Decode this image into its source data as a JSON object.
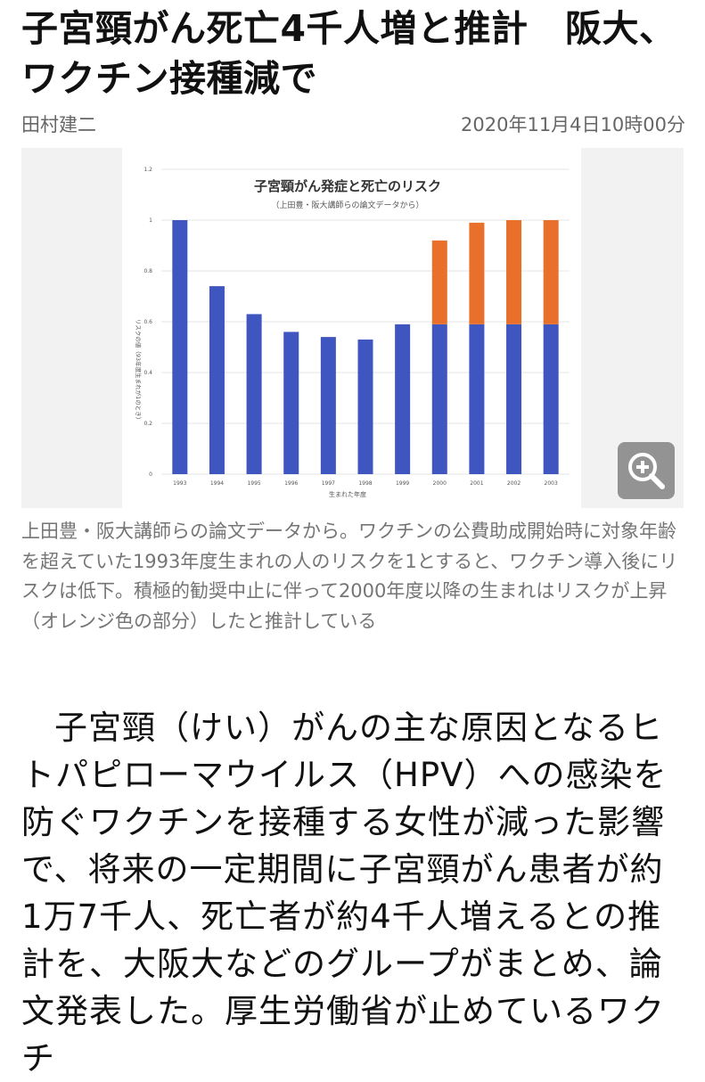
{
  "article": {
    "title": "子宮頸がん死亡4千人増と推計　阪大、ワクチン接種減で",
    "author": "田村建二",
    "date": "2020年11月4日10時00分",
    "caption": "上田豊・阪大講師らの論文データから。ワクチンの公費助成開始時に対象年齢を超えていた1993年度生まれの人のリスクを1とすると、ワクチン導入後にリスクは低下。積極的勧奨中止に伴って2000年度以降の生まれはリスクが上昇（オレンジ色の部分）したと推計している",
    "body": "子宮頸（けい）がんの主な原因となるヒトパピローマウイルス（HPV）への感染を防ぐワクチンを接種する女性が減った影響で、将来の一定期間に子宮頸がん患者が約1万7千人、死亡者が約4千人増えるとの推計を、大阪大などのグループがまとめ、論文発表した。厚生労働省が止めているワクチ"
  },
  "icons": {
    "zoom": "zoom-in-icon"
  },
  "chart_data": {
    "type": "bar",
    "stacked": true,
    "title": "子宮頸がん発症と死亡のリスク",
    "subtitle": "（上田豊・阪大講師らの論文データから）",
    "xlabel": "生まれた年度",
    "ylabel": "リスクの値（93年度生まれが1のとき）",
    "ylim": [
      0,
      1.2
    ],
    "yticks": [
      "0",
      "0.2",
      "0.4",
      "0.6",
      "0.8",
      "1",
      "1.2"
    ],
    "grid": true,
    "categories": [
      "1993",
      "1994",
      "1995",
      "1996",
      "1997",
      "1998",
      "1999",
      "2000",
      "2001",
      "2002",
      "2003"
    ],
    "series": [
      {
        "color": "#3f55c0",
        "values": [
          1.0,
          0.74,
          0.63,
          0.56,
          0.54,
          0.53,
          0.59,
          0.59,
          0.59,
          0.59,
          0.59
        ]
      },
      {
        "color": "#e8702a",
        "values": [
          0,
          0,
          0,
          0,
          0,
          0,
          0,
          0.33,
          0.4,
          0.41,
          0.41
        ]
      }
    ]
  }
}
